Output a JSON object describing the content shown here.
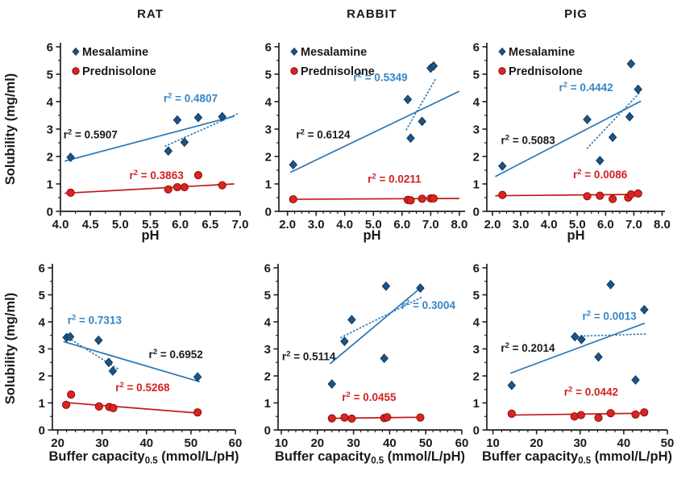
{
  "figure": {
    "ylabel": "Solubility (mg/ml)",
    "xlabel_top": "pH",
    "xlabel_bottom": {
      "main": "Buffer capacity",
      "sub": "0.5",
      "tail": " (mmol/L/pH)"
    },
    "legend": {
      "items": [
        {
          "label": "Mesalamine",
          "marker": "diamond",
          "color_key": "mesalamine"
        },
        {
          "label": "Prednisolone",
          "marker": "circle",
          "color_key": "prednisolone"
        }
      ]
    },
    "colors": {
      "mesalamine_fill": "#1d5484",
      "mesalamine_stroke": "#0f3a60",
      "mesalamine_line": "#2b77b5",
      "mesalamine_text": "#3585c5",
      "prednisolone_fill": "#da2420",
      "prednisolone_stroke": "#8c0f0f",
      "prednisolone_line": "#c51718",
      "prednisolone_text": "#d42020",
      "axis": "#1f1f1f",
      "text": "#1a1a1a"
    }
  },
  "chart_data": [
    {
      "id": "rat-ph",
      "type": "scatter",
      "title": "RAT",
      "row": "top",
      "xlabel": "pH",
      "has_legend": true,
      "has_ylabel": true,
      "xlim": [
        4.0,
        7.0
      ],
      "xticks": [
        4.0,
        4.5,
        5.0,
        5.5,
        6.0,
        6.5,
        7.0
      ],
      "xtick_labels": [
        "4.0",
        "4.5",
        "5.0",
        "5.5",
        "6.0",
        "6.5",
        "7.0"
      ],
      "x_minor": 0.25,
      "ylim": [
        0,
        6
      ],
      "yticks": [
        0,
        1,
        2,
        3,
        4,
        5,
        6
      ],
      "ytick_labels": [
        "0",
        "1",
        "2",
        "3",
        "4",
        "5",
        "6"
      ],
      "y_minor": 0.5,
      "series": [
        {
          "name": "Mesalamine",
          "points": [
            [
              4.17,
              1.97
            ],
            [
              5.8,
              2.2
            ],
            [
              5.95,
              3.33
            ],
            [
              6.07,
              2.52
            ],
            [
              6.3,
              3.42
            ],
            [
              6.7,
              3.45
            ]
          ]
        },
        {
          "name": "Prednisolone",
          "points": [
            [
              4.17,
              0.68
            ],
            [
              5.8,
              0.8
            ],
            [
              5.95,
              0.88
            ],
            [
              6.07,
              0.88
            ],
            [
              6.3,
              1.32
            ],
            [
              6.7,
              0.95
            ]
          ]
        }
      ],
      "trendlines": [
        {
          "style": "solid",
          "color": "mesalamine_line",
          "x1": 4.07,
          "y1": 1.83,
          "x2": 6.9,
          "y2": 3.47,
          "r2": "0.5907",
          "r2_color": "text",
          "r2_x": 4.05,
          "r2_y": 2.66
        },
        {
          "style": "dotted",
          "color": "mesalamine_line",
          "x1": 5.75,
          "y1": 2.38,
          "x2": 6.95,
          "y2": 3.55,
          "r2": "0.4807",
          "r2_color": "mesalamine_text",
          "r2_x": 5.72,
          "r2_y": 3.98
        },
        {
          "style": "solid",
          "color": "prednisolone_line",
          "x1": 4.07,
          "y1": 0.66,
          "x2": 6.9,
          "y2": 1.0,
          "r2": "0.3863",
          "r2_color": "prednisolone_text",
          "r2_x": 5.15,
          "r2_y": 1.18
        }
      ]
    },
    {
      "id": "rabbit-ph",
      "type": "scatter",
      "title": "RABBIT",
      "row": "top",
      "xlabel": "pH",
      "has_legend": true,
      "has_ylabel": false,
      "xlim": [
        1.7,
        8.2
      ],
      "xticks": [
        2,
        3,
        4,
        5,
        6,
        7,
        8
      ],
      "xtick_labels": [
        "2.0",
        "3.0",
        "4.0",
        "5.0",
        "6.0",
        "7.0",
        "8.0"
      ],
      "x_minor": 0.25,
      "ylim": [
        0,
        6
      ],
      "yticks": [
        0,
        1,
        2,
        3,
        4,
        5,
        6
      ],
      "ytick_labels": [
        "0",
        "1",
        "2",
        "3",
        "4",
        "5",
        "6"
      ],
      "y_minor": 0.5,
      "series": [
        {
          "name": "Mesalamine",
          "points": [
            [
              2.2,
              1.7
            ],
            [
              6.2,
              4.08
            ],
            [
              6.3,
              2.67
            ],
            [
              6.7,
              3.28
            ],
            [
              7.0,
              5.22
            ],
            [
              7.1,
              5.3
            ]
          ]
        },
        {
          "name": "Prednisolone",
          "points": [
            [
              2.2,
              0.44
            ],
            [
              6.2,
              0.42
            ],
            [
              6.3,
              0.4
            ],
            [
              6.7,
              0.46
            ],
            [
              7.0,
              0.47
            ],
            [
              7.1,
              0.47
            ]
          ]
        }
      ],
      "trendlines": [
        {
          "style": "solid",
          "color": "mesalamine_line",
          "x1": 2.1,
          "y1": 1.42,
          "x2": 8.0,
          "y2": 4.38,
          "r2": "0.6124",
          "r2_color": "text",
          "r2_x": 2.3,
          "r2_y": 2.66
        },
        {
          "style": "dotted",
          "color": "mesalamine_line",
          "x1": 6.15,
          "y1": 2.98,
          "x2": 7.2,
          "y2": 4.88,
          "r2": "0.5349",
          "r2_color": "mesalamine_text",
          "r2_x": 4.3,
          "r2_y": 4.75
        },
        {
          "style": "solid",
          "color": "prednisolone_line",
          "x1": 2.1,
          "y1": 0.44,
          "x2": 8.0,
          "y2": 0.47,
          "r2": "0.0211",
          "r2_color": "prednisolone_text",
          "r2_x": 4.8,
          "r2_y": 1.05
        }
      ]
    },
    {
      "id": "pig-ph",
      "type": "scatter",
      "title": "PIG",
      "row": "top",
      "xlabel": "pH",
      "has_legend": true,
      "has_ylabel": false,
      "xlim": [
        1.8,
        8.1
      ],
      "xticks": [
        2,
        3,
        4,
        5,
        6,
        7,
        8
      ],
      "xtick_labels": [
        "2.0",
        "3.0",
        "4.0",
        "5.0",
        "6.0",
        "7.0",
        "8.0"
      ],
      "x_minor": 0.25,
      "ylim": [
        0,
        6
      ],
      "yticks": [
        0,
        1,
        2,
        3,
        4,
        5,
        6
      ],
      "ytick_labels": [
        "0",
        "1",
        "2",
        "3",
        "4",
        "5",
        "6"
      ],
      "y_minor": 0.5,
      "series": [
        {
          "name": "Mesalamine",
          "points": [
            [
              2.35,
              1.65
            ],
            [
              5.35,
              3.35
            ],
            [
              5.8,
              1.85
            ],
            [
              6.25,
              2.7
            ],
            [
              6.85,
              3.45
            ],
            [
              6.9,
              5.38
            ],
            [
              7.15,
              4.45
            ]
          ]
        },
        {
          "name": "Prednisolone",
          "points": [
            [
              2.35,
              0.6
            ],
            [
              5.35,
              0.55
            ],
            [
              5.8,
              0.57
            ],
            [
              6.25,
              0.45
            ],
            [
              6.8,
              0.5
            ],
            [
              6.9,
              0.62
            ],
            [
              7.15,
              0.65
            ]
          ]
        }
      ],
      "trendlines": [
        {
          "style": "solid",
          "color": "mesalamine_line",
          "x1": 2.1,
          "y1": 1.27,
          "x2": 7.25,
          "y2": 4.02,
          "r2": "0.5083",
          "r2_color": "text",
          "r2_x": 2.3,
          "r2_y": 2.45
        },
        {
          "style": "dotted",
          "color": "mesalamine_line",
          "x1": 5.35,
          "y1": 2.3,
          "x2": 7.2,
          "y2": 4.32,
          "r2": "0.4442",
          "r2_color": "mesalamine_text",
          "r2_x": 4.35,
          "r2_y": 4.38
        },
        {
          "style": "solid",
          "color": "prednisolone_line",
          "x1": 2.1,
          "y1": 0.57,
          "x2": 7.25,
          "y2": 0.62,
          "r2": "0.0086",
          "r2_color": "prednisolone_text",
          "r2_x": 4.85,
          "r2_y": 1.2
        }
      ]
    },
    {
      "id": "rat-buffer",
      "type": "scatter",
      "title": "",
      "row": "bottom",
      "xlabel": "buffer",
      "has_legend": false,
      "has_ylabel": true,
      "xlim": [
        18.8,
        60
      ],
      "xticks": [
        20,
        30,
        40,
        50,
        60
      ],
      "xtick_labels": [
        "20",
        "30",
        "40",
        "50",
        "60"
      ],
      "x_minor": 2,
      "ylim": [
        0,
        6
      ],
      "yticks": [
        0,
        1,
        2,
        3,
        4,
        5,
        6
      ],
      "ytick_labels": [
        "0",
        "1",
        "2",
        "3",
        "4",
        "5",
        "6"
      ],
      "y_minor": 0.5,
      "series": [
        {
          "name": "Mesalamine",
          "points": [
            [
              22.0,
              3.42
            ],
            [
              22.8,
              3.45
            ],
            [
              29.2,
              3.32
            ],
            [
              31.5,
              2.5
            ],
            [
              32.4,
              2.18
            ],
            [
              51.5,
              1.96
            ]
          ]
        },
        {
          "name": "Prednisolone",
          "points": [
            [
              21.9,
              0.93
            ],
            [
              23.0,
              1.31
            ],
            [
              29.3,
              0.87
            ],
            [
              31.6,
              0.85
            ],
            [
              32.5,
              0.81
            ],
            [
              51.5,
              0.65
            ]
          ]
        }
      ],
      "trendlines": [
        {
          "style": "solid",
          "color": "mesalamine_line",
          "x1": 21.3,
          "y1": 3.27,
          "x2": 52.0,
          "y2": 1.78,
          "r2": "0.6952",
          "r2_color": "text",
          "r2_x": 40.5,
          "r2_y": 2.66
        },
        {
          "style": "dotted",
          "color": "mesalamine_line",
          "x1": 21.8,
          "y1": 3.47,
          "x2": 33.5,
          "y2": 2.26,
          "r2": "0.7313",
          "r2_color": "mesalamine_text",
          "r2_x": 22.2,
          "r2_y": 3.92
        },
        {
          "style": "solid",
          "color": "prednisolone_line",
          "x1": 21.3,
          "y1": 1.02,
          "x2": 52.0,
          "y2": 0.62,
          "r2": "0.5268",
          "r2_color": "prednisolone_text",
          "r2_x": 33.0,
          "r2_y": 1.44
        }
      ]
    },
    {
      "id": "rabbit-buffer",
      "type": "scatter",
      "title": "",
      "row": "bottom",
      "xlabel": "buffer",
      "has_legend": false,
      "has_ylabel": false,
      "xlim": [
        9.1,
        60
      ],
      "xticks": [
        10,
        20,
        30,
        40,
        50,
        60
      ],
      "xtick_labels": [
        "10",
        "20",
        "30",
        "40",
        "50",
        "60"
      ],
      "x_minor": 2,
      "ylim": [
        0,
        6
      ],
      "yticks": [
        0,
        1,
        2,
        3,
        4,
        5,
        6
      ],
      "ytick_labels": [
        "0",
        "1",
        "2",
        "3",
        "4",
        "5",
        "6"
      ],
      "y_minor": 0.5,
      "series": [
        {
          "name": "Mesalamine",
          "points": [
            [
              24.0,
              1.7
            ],
            [
              27.5,
              3.28
            ],
            [
              29.5,
              4.08
            ],
            [
              38.5,
              2.65
            ],
            [
              39.0,
              5.32
            ],
            [
              48.5,
              5.25
            ]
          ]
        },
        {
          "name": "Prednisolone",
          "points": [
            [
              24.0,
              0.43
            ],
            [
              27.5,
              0.46
            ],
            [
              29.5,
              0.42
            ],
            [
              38.5,
              0.44
            ],
            [
              39.3,
              0.47
            ],
            [
              48.5,
              0.46
            ]
          ]
        }
      ],
      "trendlines": [
        {
          "style": "solid",
          "color": "mesalamine_line",
          "x1": 23.5,
          "y1": 2.45,
          "x2": 48.5,
          "y2": 5.25,
          "r2": "0.5114",
          "r2_color": "text",
          "r2_x": 10.2,
          "r2_y": 2.58
        },
        {
          "style": "dotted",
          "color": "mesalamine_line",
          "x1": 26.5,
          "y1": 3.42,
          "x2": 49.0,
          "y2": 4.92,
          "r2": "0.3004",
          "r2_color": "mesalamine_text",
          "r2_x": 43.2,
          "r2_y": 4.48
        },
        {
          "style": "solid",
          "color": "prednisolone_line",
          "x1": 23.5,
          "y1": 0.43,
          "x2": 48.5,
          "y2": 0.47,
          "r2": "0.0455",
          "r2_color": "prednisolone_text",
          "r2_x": 26.8,
          "r2_y": 1.08
        }
      ]
    },
    {
      "id": "pig-buffer",
      "type": "scatter",
      "title": "",
      "row": "bottom",
      "xlabel": "buffer",
      "has_legend": false,
      "has_ylabel": false,
      "xlim": [
        8.6,
        50
      ],
      "xticks": [
        10,
        20,
        30,
        40,
        50
      ],
      "xtick_labels": [
        "10",
        "20",
        "30",
        "40",
        "50"
      ],
      "x_minor": 2,
      "ylim": [
        0,
        6
      ],
      "yticks": [
        0,
        1,
        2,
        3,
        4,
        5,
        6
      ],
      "ytick_labels": [
        "0",
        "1",
        "2",
        "3",
        "4",
        "5",
        "6"
      ],
      "y_minor": 0.5,
      "series": [
        {
          "name": "Mesalamine",
          "points": [
            [
              14.3,
              1.65
            ],
            [
              28.8,
              3.45
            ],
            [
              30.3,
              3.35
            ],
            [
              34.2,
              2.7
            ],
            [
              37.0,
              5.38
            ],
            [
              42.7,
              1.85
            ],
            [
              44.7,
              4.45
            ]
          ]
        },
        {
          "name": "Prednisolone",
          "points": [
            [
              14.3,
              0.6
            ],
            [
              28.7,
              0.5
            ],
            [
              30.2,
              0.55
            ],
            [
              34.2,
              0.45
            ],
            [
              37.0,
              0.62
            ],
            [
              42.7,
              0.57
            ],
            [
              44.7,
              0.65
            ]
          ]
        }
      ],
      "trendlines": [
        {
          "style": "solid",
          "color": "mesalamine_line",
          "x1": 14.0,
          "y1": 2.1,
          "x2": 44.8,
          "y2": 3.95,
          "r2": "0.2014",
          "r2_color": "text",
          "r2_x": 11.8,
          "r2_y": 2.9
        },
        {
          "style": "dotted",
          "color": "mesalamine_line",
          "x1": 29.3,
          "y1": 3.47,
          "x2": 45.0,
          "y2": 3.55,
          "r2": "0.0013",
          "r2_color": "mesalamine_text",
          "r2_x": 30.5,
          "r2_y": 4.08
        },
        {
          "style": "solid",
          "color": "prednisolone_line",
          "x1": 14.0,
          "y1": 0.55,
          "x2": 44.8,
          "y2": 0.62,
          "r2": "0.0442",
          "r2_color": "prednisolone_text",
          "r2_x": 26.3,
          "r2_y": 1.27
        }
      ]
    }
  ]
}
